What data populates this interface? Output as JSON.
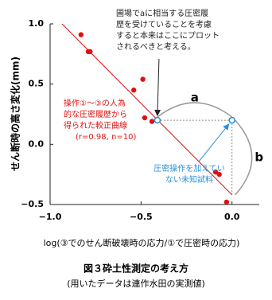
{
  "chart_data": {
    "type": "scatter",
    "y_label": "せん断時の高さ変化(mm)",
    "x_label": "log(③でのせん断破壊時の応力/①で圧密時の応力)",
    "caption": [
      "図３砕土性測定の考え方",
      "(用いたデータは連作水田の実測値)"
    ],
    "xlim": [
      -1.0,
      0.15
    ],
    "ylim": [
      -0.5,
      1.0
    ],
    "xticks": [
      {
        "value": -1.0,
        "label": "−1.0"
      },
      {
        "value": -0.5,
        "label": "−0.5"
      },
      {
        "value": 0.0,
        "label": "0.0"
      }
    ],
    "yticks": [
      {
        "value": 1.0,
        "label": "1.0"
      },
      {
        "value": 0.5,
        "label": "0.5"
      },
      {
        "value": 0.0,
        "label": "0.0"
      },
      {
        "value": -0.5,
        "label": "−0.5"
      }
    ],
    "color": "#e01010",
    "x": [
      -0.83,
      -0.79,
      -0.78,
      -0.49,
      -0.54,
      -0.48,
      -0.44,
      -0.09,
      -0.07,
      -0.03
    ],
    "values": [
      0.91,
      0.77,
      0.77,
      0.54,
      0.45,
      0.22,
      0.19,
      -0.23,
      -0.25,
      -0.48
    ],
    "fit_line": {
      "x": [
        -1.0,
        0.0
      ],
      "y": [
        1.1,
        -0.42
      ]
    },
    "unknown_point": {
      "x": -0.41,
      "y": 0.2
    },
    "shifted_point": {
      "x": 0.0,
      "y": 0.2
    },
    "annotation_top": [
      "圃場でaに相当する圧密履",
      "歴を受けていることを考慮",
      "すると本来はここにプロット",
      "されるべきと考える。"
    ],
    "annotation_fit": [
      "操作①～③の人為",
      "的な圧密履歴から",
      "得られた較正曲線",
      "(r=0.98, n=10)"
    ],
    "annotation_unknown": [
      "圧密操作を加えてい",
      "ない未知試料"
    ],
    "label_a": "a",
    "label_b": "b"
  }
}
